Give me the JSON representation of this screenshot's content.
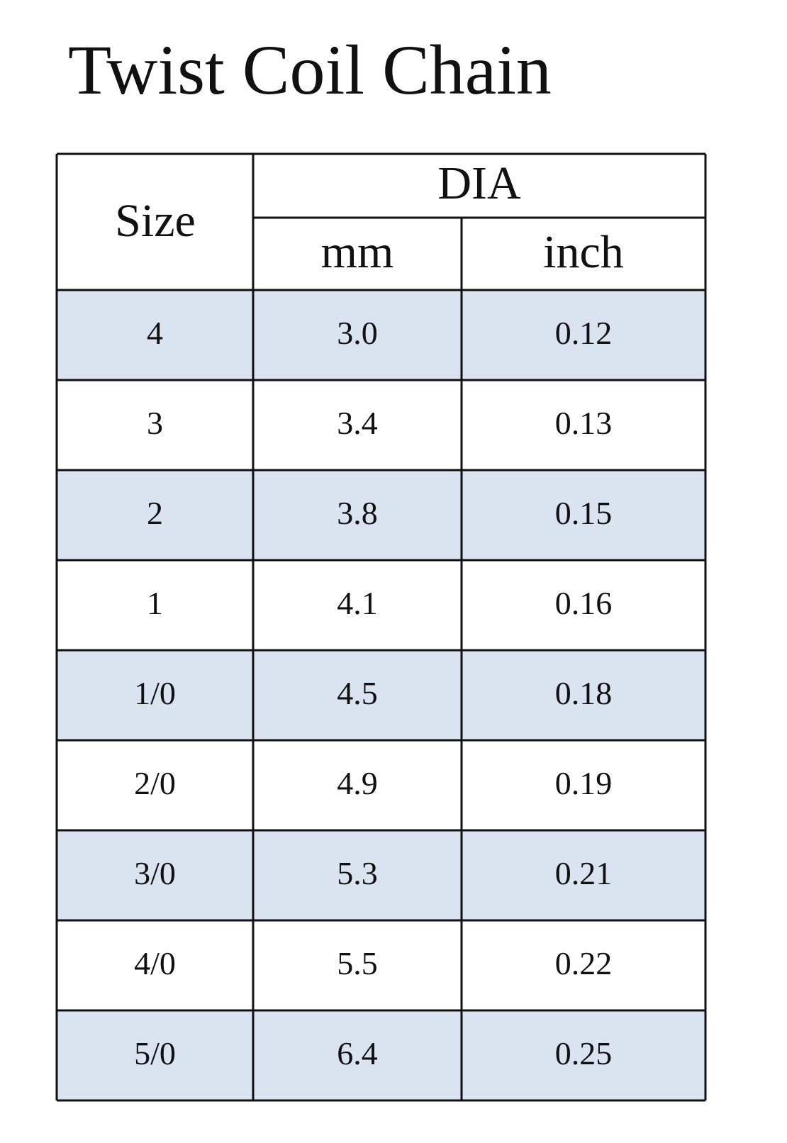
{
  "header": {
    "title": "Twist Coil Chain"
  },
  "table": {
    "columns": {
      "size": "Size",
      "group": "DIA",
      "mm": "mm",
      "inch": "inch"
    },
    "rows": [
      [
        "4",
        "3.0",
        "0.12"
      ],
      [
        "3",
        "3.4",
        "0.13"
      ],
      [
        "2",
        "3.8",
        "0.15"
      ],
      [
        "1",
        "4.1",
        "0.16"
      ],
      [
        "1/0",
        "4.5",
        "0.18"
      ],
      [
        "2/0",
        "4.9",
        "0.19"
      ],
      [
        "3/0",
        "5.3",
        "0.21"
      ],
      [
        "4/0",
        "5.5",
        "0.22"
      ],
      [
        "5/0",
        "6.4",
        "0.25"
      ]
    ]
  }
}
